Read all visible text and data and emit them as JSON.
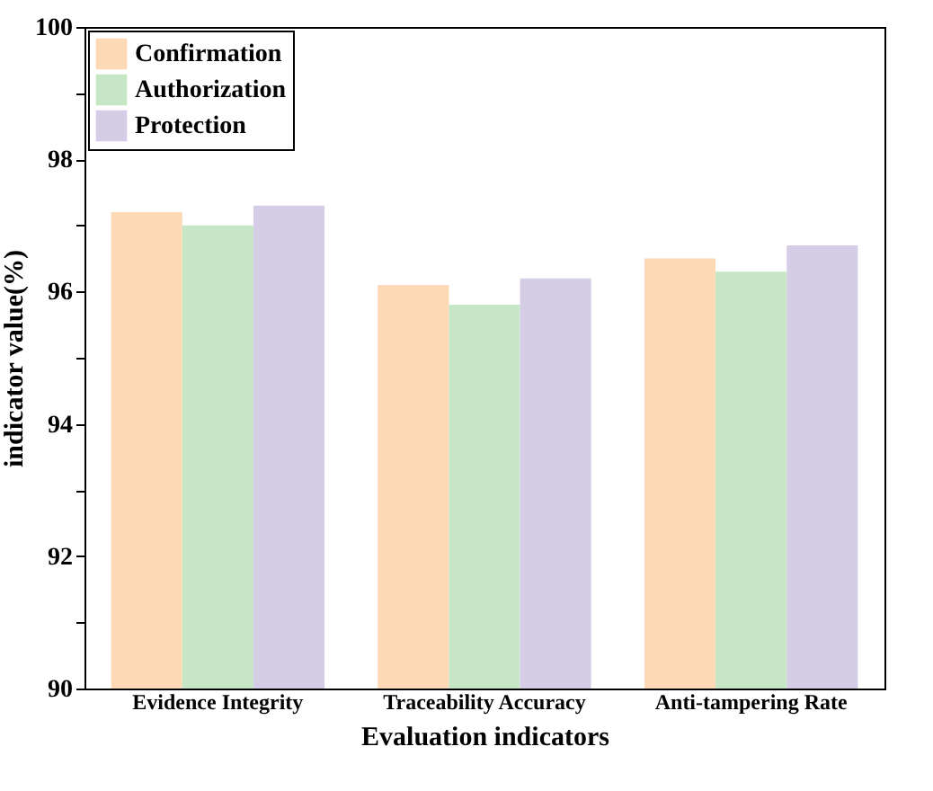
{
  "chart_data": {
    "type": "bar",
    "xlabel": "Evaluation indicators",
    "ylabel": "indicator value(%)",
    "categories": [
      "Evidence Integrity",
      "Traceability Accuracy",
      "Anti-tampering Rate"
    ],
    "series": [
      {
        "name": "Confirmation",
        "color": "#fdd9b5",
        "values": [
          97.2,
          96.1,
          96.5
        ]
      },
      {
        "name": "Authorization",
        "color": "#c6e6c6",
        "values": [
          97.0,
          95.8,
          96.3
        ]
      },
      {
        "name": "Protection",
        "color": "#d5cde6",
        "values": [
          97.3,
          96.2,
          96.7
        ]
      }
    ],
    "ylim": [
      90,
      100
    ],
    "yticks": [
      90,
      {
        "value": 91,
        "label": null
      },
      92,
      {
        "value": 93,
        "label": null
      },
      94,
      {
        "value": 95,
        "label": null
      },
      96,
      {
        "value": 97,
        "label": null
      },
      98,
      {
        "value": 99,
        "label": null
      },
      100
    ],
    "grid": false,
    "legend": "top left"
  }
}
